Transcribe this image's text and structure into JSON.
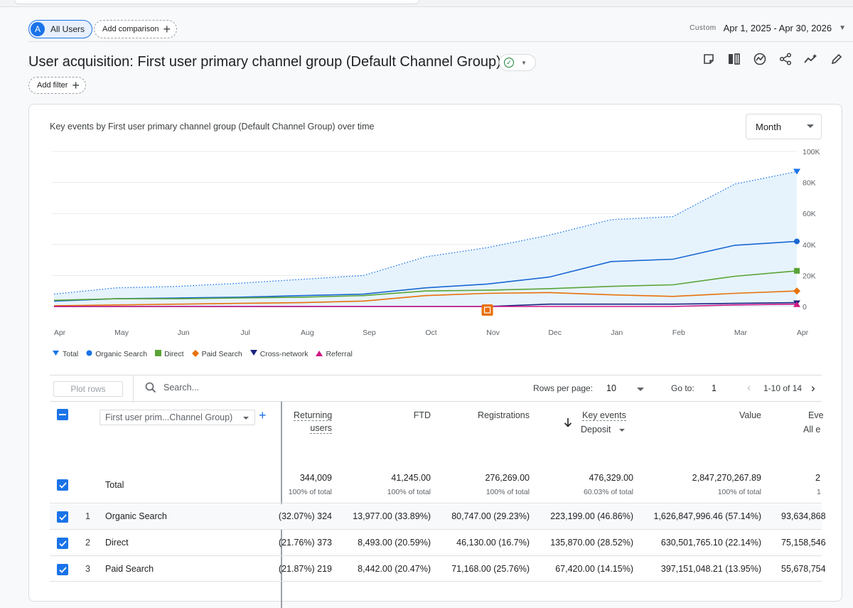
{
  "segments": {
    "all_users": "All Users",
    "avatar_letter": "A",
    "add_comparison": "Add comparison"
  },
  "date_range": {
    "label": "Custom",
    "value": "Apr 1, 2025 - Apr 30, 2026"
  },
  "title": "User acquisition: First user primary channel group (Default Channel Group)",
  "add_filter": "Add filter",
  "toolbar_icons": [
    "edit-comparison-icon",
    "compare-icon",
    "insights-icon",
    "share-icon",
    "trend-icon",
    "pencil-icon"
  ],
  "chart": {
    "title": "Key events by First user primary channel group (Default Channel Group) over time",
    "granularity": "Month",
    "legend": [
      {
        "name": "Total",
        "color": "#1a73e8",
        "marker": "pin"
      },
      {
        "name": "Organic Search",
        "color": "#1a73e8",
        "marker": "circle"
      },
      {
        "name": "Direct",
        "color": "#5aa337",
        "marker": "square"
      },
      {
        "name": "Paid Search",
        "color": "#e8710a",
        "marker": "diamond"
      },
      {
        "name": "Cross-network",
        "color": "#1a237e",
        "marker": "triangle-down"
      },
      {
        "name": "Referral",
        "color": "#d01884",
        "marker": "triangle-up"
      }
    ]
  },
  "chart_data": {
    "type": "line",
    "x": [
      "Apr",
      "May",
      "Jun",
      "Jul",
      "Aug",
      "Sep",
      "Oct",
      "Nov",
      "Dec",
      "Jan",
      "Feb",
      "Mar",
      "Apr"
    ],
    "ylim": [
      0,
      100000
    ],
    "yticks": [
      "0",
      "20K",
      "40K",
      "60K",
      "80K",
      "100K"
    ],
    "series": [
      {
        "name": "Total",
        "style": "dotted-area",
        "color": "#1a73e8",
        "values": [
          8000,
          12000,
          13000,
          15000,
          17500,
          20000,
          32000,
          38000,
          46000,
          56000,
          58000,
          79000,
          87000
        ]
      },
      {
        "name": "Organic Search",
        "color": "#1967d2",
        "values": [
          3500,
          5000,
          5500,
          6000,
          7000,
          8000,
          12000,
          14500,
          19000,
          29000,
          30500,
          39500,
          42000
        ]
      },
      {
        "name": "Direct",
        "color": "#5aa337",
        "values": [
          4000,
          5000,
          5000,
          5500,
          6000,
          7000,
          10000,
          10500,
          11500,
          13000,
          14000,
          19500,
          23000
        ]
      },
      {
        "name": "Paid Search",
        "color": "#e8710a",
        "values": [
          500,
          1000,
          1500,
          2000,
          2500,
          3500,
          7000,
          8500,
          9000,
          7500,
          6500,
          8500,
          10000
        ]
      },
      {
        "name": "Cross-network",
        "color": "#1a237e",
        "values": [
          0,
          0,
          0,
          0,
          0,
          0,
          0,
          0,
          1500,
          1500,
          1500,
          2000,
          2500
        ]
      },
      {
        "name": "Referral",
        "color": "#d01884",
        "values": [
          0,
          0,
          0,
          0,
          0,
          0,
          0,
          0,
          0,
          0,
          0,
          1000,
          1500
        ]
      }
    ]
  },
  "table_bar": {
    "plot_rows": "Plot rows",
    "search_placeholder": "Search...",
    "rows_per_page_label": "Rows per page:",
    "rows_per_page": "10",
    "goto_label": "Go to:",
    "goto_value": "1",
    "range": "1-10 of 14"
  },
  "table": {
    "dimension": "First user prim...Channel Group)",
    "columns": {
      "returning_users": [
        "Returning",
        "users"
      ],
      "ftd": "FTD",
      "registrations": "Registrations",
      "key_events": "Key events",
      "key_events_sub": "Deposit",
      "value": "Value",
      "events": "Eve",
      "events_sub": "All e"
    },
    "total": {
      "label": "Total",
      "returning_users": "344,009",
      "returning_users_sub": "100% of total",
      "ftd": "41,245.00",
      "ftd_sub": "100% of total",
      "registrations": "276,269.00",
      "registrations_sub": "100% of total",
      "key_events": "476,329.00",
      "key_events_sub": "60.03% of total",
      "value": "2,847,270,267.89",
      "value_sub": "100% of total",
      "events": "2",
      "events_sub": "1"
    },
    "rows": [
      {
        "rank": "1",
        "name": "Organic Search",
        "returning_users": "324 (32.07%)",
        "ftd": "13,977.00 (33.89%)",
        "registrations": "80,747.00 (29.23%)",
        "key_events": "223,199.00 (46.86%)",
        "value": "1,626,847,996.46 (57.14%)",
        "events": "93,634,868"
      },
      {
        "rank": "2",
        "name": "Direct",
        "returning_users": "373 (21.76%)",
        "ftd": "8,493.00 (20.59%)",
        "registrations": "46,130.00 (16.7%)",
        "key_events": "135,870.00 (28.52%)",
        "value": "630,501,765.10 (22.14%)",
        "events": "75,158,546"
      },
      {
        "rank": "3",
        "name": "Paid Search",
        "returning_users": "219 (21.87%)",
        "ftd": "8,442.00 (20.47%)",
        "registrations": "71,168.00 (25.76%)",
        "key_events": "67,420.00 (14.15%)",
        "value": "397,151,048.21 (13.95%)",
        "events": "55,678,754"
      }
    ]
  }
}
